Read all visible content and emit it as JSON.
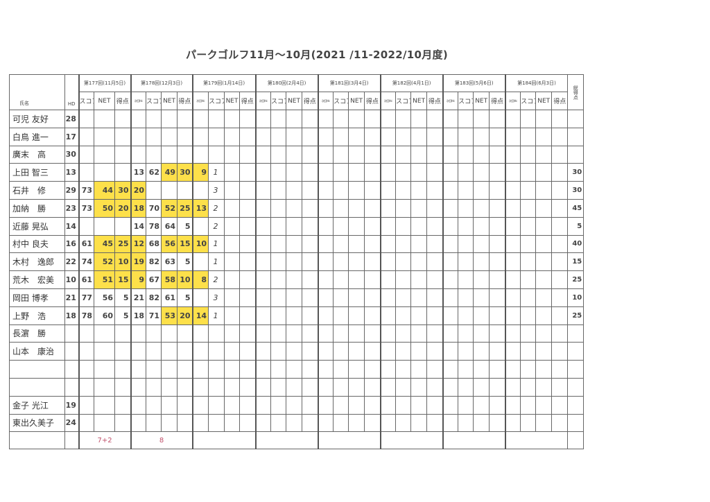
{
  "title": "パークゴルフ11月～10月(2021 /11-2022/10月度)",
  "header": {
    "name": "氏名",
    "hd": "HD",
    "total": "総得点",
    "rounds": [
      {
        "label": "第177回(11月5日)",
        "cols": [
          "スコア",
          "NET",
          "得点"
        ]
      },
      {
        "label": "第178回(12月3日)",
        "cols": [
          "次回Hc",
          "スコア",
          "NET",
          "得点"
        ]
      },
      {
        "label": "第179回(1月14日)",
        "cols": [
          "次回Hc",
          "スコア",
          "NET",
          "得点"
        ]
      },
      {
        "label": "第180回(2月4日)",
        "cols": [
          "次回Hc",
          "スコア",
          "NET",
          "得点"
        ]
      },
      {
        "label": "第181回(3月4日)",
        "cols": [
          "次回Hc",
          "スコア",
          "NET",
          "得点"
        ]
      },
      {
        "label": "第182回(4月1日)",
        "cols": [
          "次回Hc",
          "スコア",
          "NET",
          "得点"
        ]
      },
      {
        "label": "第183回(5月6日)",
        "cols": [
          "次回Hc",
          "スコア",
          "NET",
          "得点"
        ]
      },
      {
        "label": "第184回(6月3日)",
        "cols": [
          "次回Hc",
          "スコア",
          "NET",
          "得点"
        ]
      }
    ]
  },
  "highlight_color": "#fde04a",
  "rows": [
    {
      "name": "可児 友好",
      "hd": "28",
      "cells": {},
      "highlight": [],
      "total": ""
    },
    {
      "name": "白鳥 進一",
      "hd": "17",
      "cells": {},
      "highlight": [],
      "total": ""
    },
    {
      "name": "廣末　高",
      "hd": "30",
      "cells": {},
      "highlight": [],
      "total": ""
    },
    {
      "name": "上田 智三",
      "hd": "13",
      "cells": {
        "3": "13",
        "4": "62",
        "5": "49",
        "6": "30",
        "7": "9",
        "8": "1"
      },
      "highlight": [
        5,
        6,
        7
      ],
      "total": "30"
    },
    {
      "name": "石井　修",
      "hd": "29",
      "cells": {
        "0": "73",
        "1": "44",
        "2": "30",
        "3": "20",
        "8": "3"
      },
      "highlight": [
        1,
        2,
        3
      ],
      "total": "30"
    },
    {
      "name": "加納　勝",
      "hd": "23",
      "cells": {
        "0": "73",
        "1": "50",
        "2": "20",
        "3": "18",
        "4": "70",
        "5": "52",
        "6": "25",
        "7": "13",
        "8": "2"
      },
      "highlight": [
        1,
        2,
        3,
        5,
        6,
        7
      ],
      "total": "45"
    },
    {
      "name": "近藤 晃弘",
      "hd": "14",
      "cells": {
        "3": "14",
        "4": "78",
        "5": "64",
        "6": "5",
        "8": "2"
      },
      "highlight": [],
      "total": "5"
    },
    {
      "name": "村中 良夫",
      "hd": "16",
      "cells": {
        "0": "61",
        "1": "45",
        "2": "25",
        "3": "12",
        "4": "68",
        "5": "56",
        "6": "15",
        "7": "10",
        "8": "1"
      },
      "highlight": [
        1,
        2,
        3,
        5,
        6,
        7
      ],
      "total": "40"
    },
    {
      "name": "木村　逸郎",
      "hd": "22",
      "cells": {
        "0": "74",
        "1": "52",
        "2": "10",
        "3": "19",
        "4": "82",
        "5": "63",
        "6": "5",
        "8": "1"
      },
      "highlight": [
        1,
        2,
        3
      ],
      "total": "15"
    },
    {
      "name": "荒木　宏美",
      "hd": "10",
      "cells": {
        "0": "61",
        "1": "51",
        "2": "15",
        "3": "9",
        "4": "67",
        "5": "58",
        "6": "10",
        "7": "8",
        "8": "2"
      },
      "highlight": [
        1,
        2,
        3,
        5,
        6,
        7
      ],
      "total": "25"
    },
    {
      "name": "岡田 博孝",
      "hd": "21",
      "cells": {
        "0": "77",
        "1": "56",
        "2": "5",
        "3": "21",
        "4": "82",
        "5": "61",
        "6": "5",
        "8": "3"
      },
      "highlight": [],
      "total": "10"
    },
    {
      "name": "上野　浩",
      "hd": "18",
      "cells": {
        "0": "78",
        "1": "60",
        "2": "5",
        "3": "18",
        "4": "71",
        "5": "53",
        "6": "20",
        "7": "14",
        "8": "1"
      },
      "highlight": [
        5,
        6,
        7
      ],
      "total": "25"
    },
    {
      "name": "長濵　勝",
      "hd": "",
      "cells": {},
      "highlight": [],
      "total": ""
    },
    {
      "name": "山本　康治",
      "hd": "",
      "cells": {},
      "highlight": [],
      "total": ""
    },
    {
      "name": "",
      "hd": "",
      "cells": {},
      "highlight": [],
      "total": ""
    },
    {
      "name": "",
      "hd": "",
      "cells": {},
      "highlight": [],
      "total": ""
    },
    {
      "name": "金子 光江",
      "hd": "19",
      "cells": {},
      "highlight": [],
      "total": ""
    },
    {
      "name": "東出久美子",
      "hd": "24",
      "cells": {},
      "highlight": [],
      "total": ""
    }
  ],
  "footer": {
    "round177": "7+2",
    "round178": "8"
  }
}
